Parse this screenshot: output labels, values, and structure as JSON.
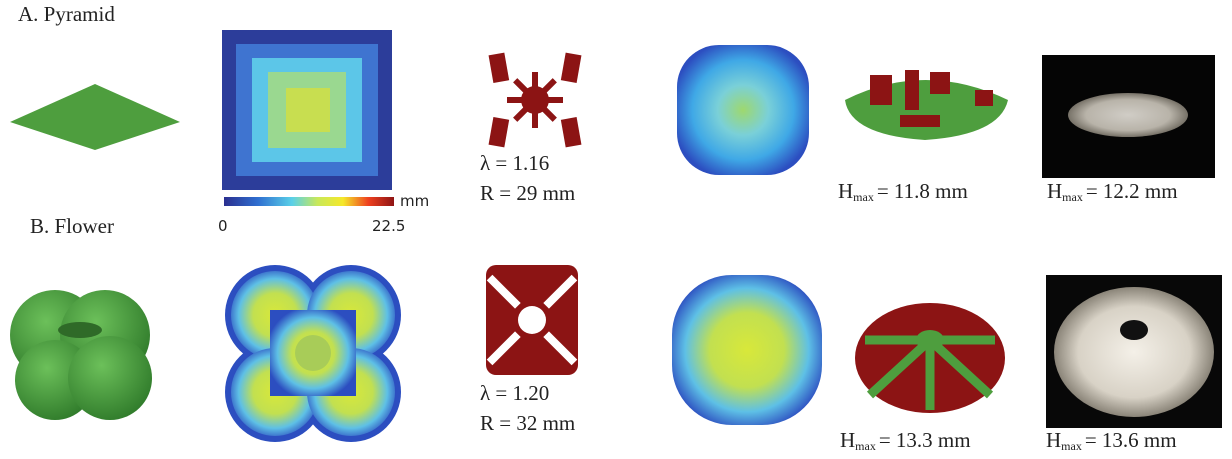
{
  "panels": [
    {
      "label": "A. Pyramid",
      "parameters": [
        "λ = 1.16",
        "R = 29 mm"
      ],
      "simulation_height": {
        "symbol": "H",
        "subscript": "max",
        "value": "= 11.8 mm"
      },
      "experiment_height": {
        "symbol": "H",
        "subscript": "max",
        "value": "= 12.2 mm"
      }
    },
    {
      "label": "B. Flower",
      "parameters": [
        "λ = 1.20",
        "R = 32 mm"
      ],
      "simulation_height": {
        "symbol": "H",
        "subscript": "max",
        "value": "= 13.3 mm"
      },
      "experiment_height": {
        "symbol": "H",
        "subscript": "max",
        "value": "= 13.6 mm"
      }
    }
  ],
  "colorbar": {
    "unit": "mm",
    "min": "0",
    "max": "22.5"
  }
}
